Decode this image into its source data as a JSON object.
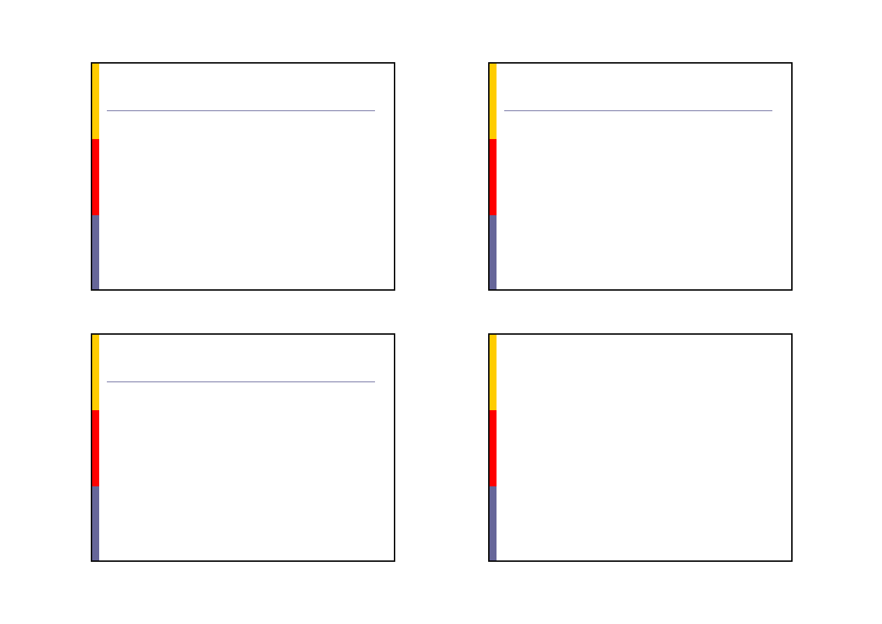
{
  "colors": {
    "accent_yellow": "#ffcc00",
    "accent_red": "#ff0000",
    "accent_blue": "#666699",
    "title_rule": "#666699",
    "border": "#000000"
  },
  "slides": [
    {
      "has_title_rule": true
    },
    {
      "has_title_rule": true
    },
    {
      "has_title_rule": true
    },
    {
      "has_title_rule": false
    }
  ]
}
